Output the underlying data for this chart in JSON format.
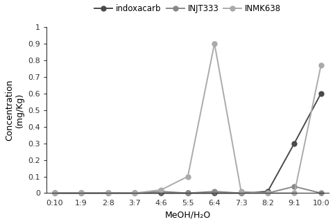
{
  "x_labels": [
    "0:10",
    "1:9",
    "2:8",
    "3:7",
    "4:6",
    "5:5",
    "6:4",
    "7:3",
    "8:2",
    "9:1",
    "10:0"
  ],
  "series_order": [
    "indoxacarb",
    "INJT333",
    "INMK638"
  ],
  "series": {
    "indoxacarb": {
      "values": [
        0.0,
        0.0,
        0.0,
        0.0,
        0.0,
        0.0,
        0.0,
        0.0,
        0.01,
        0.3,
        0.6
      ],
      "color": "#4a4a4a",
      "marker": "o",
      "markersize": 5,
      "linewidth": 1.4
    },
    "INJT333": {
      "values": [
        0.0,
        0.0,
        0.0,
        0.0,
        0.01,
        0.0,
        0.01,
        0.0,
        0.0,
        0.04,
        0.0
      ],
      "color": "#888888",
      "marker": "o",
      "markersize": 5,
      "linewidth": 1.4
    },
    "INMK638": {
      "values": [
        0.0,
        0.0,
        0.0,
        0.0,
        0.02,
        0.1,
        0.9,
        0.01,
        0.0,
        0.0,
        0.77
      ],
      "color": "#aaaaaa",
      "marker": "o",
      "markersize": 5,
      "linewidth": 1.4
    }
  },
  "ylabel_line1": "Concentration",
  "ylabel_line2": "(mg/Kg)",
  "xlabel": "MeOH/H₂O",
  "ylim": [
    0,
    1.0
  ],
  "yticks": [
    0,
    0.1,
    0.2,
    0.3,
    0.4,
    0.5,
    0.6,
    0.7,
    0.8,
    0.9,
    1
  ],
  "ytick_labels": [
    "0",
    "0.1",
    "0.2",
    "0.3",
    "0.4",
    "0.5",
    "0.6",
    "0.7",
    "0.8",
    "0.9",
    "1"
  ],
  "background_color": "#ffffff",
  "label_fontsize": 9,
  "tick_fontsize": 8,
  "legend_fontsize": 8.5
}
